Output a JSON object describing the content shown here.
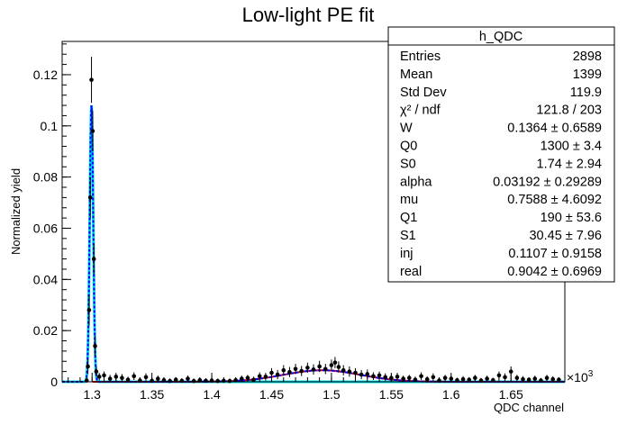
{
  "chart_data": {
    "type": "scatter",
    "title": "Low-light PE fit",
    "xlabel": "QDC channel",
    "ylabel": "Normalized yield",
    "x_multiplier": "×10",
    "x_multiplier_exp": "3",
    "xlim": [
      1.275,
      1.695
    ],
    "ylim": [
      0,
      0.133
    ],
    "xticks": [
      {
        "v": 1.3,
        "label": "1.3"
      },
      {
        "v": 1.35,
        "label": "1.35"
      },
      {
        "v": 1.4,
        "label": "1.4"
      },
      {
        "v": 1.45,
        "label": "1.45"
      },
      {
        "v": 1.5,
        "label": "1.5"
      },
      {
        "v": 1.55,
        "label": "1.55"
      },
      {
        "v": 1.6,
        "label": "1.6"
      },
      {
        "v": 1.65,
        "label": "1.65"
      }
    ],
    "yticks": [
      {
        "v": 0,
        "label": "0"
      },
      {
        "v": 0.02,
        "label": "0.02"
      },
      {
        "v": 0.04,
        "label": "0.04"
      },
      {
        "v": 0.06,
        "label": "0.06"
      },
      {
        "v": 0.08,
        "label": "0.08"
      },
      {
        "v": 0.1,
        "label": "0.1"
      },
      {
        "v": 0.12,
        "label": "0.12"
      }
    ],
    "data_points": [
      {
        "x": 1.2955,
        "y": 0.0005,
        "err": 0.0012
      },
      {
        "x": 1.2965,
        "y": 0.006,
        "err": 0.003
      },
      {
        "x": 1.2975,
        "y": 0.028,
        "err": 0.006
      },
      {
        "x": 1.2985,
        "y": 0.072,
        "err": 0.008
      },
      {
        "x": 1.2995,
        "y": 0.118,
        "err": 0.009
      },
      {
        "x": 1.3005,
        "y": 0.098,
        "err": 0.008
      },
      {
        "x": 1.3015,
        "y": 0.048,
        "err": 0.006
      },
      {
        "x": 1.3025,
        "y": 0.014,
        "err": 0.004
      },
      {
        "x": 1.3035,
        "y": 0.004,
        "err": 0.002
      },
      {
        "x": 1.306,
        "y": 0.002,
        "err": 0.0015
      },
      {
        "x": 1.31,
        "y": 0.0025,
        "err": 0.0015
      },
      {
        "x": 1.315,
        "y": 0.0012,
        "err": 0.0015
      },
      {
        "x": 1.32,
        "y": 0.002,
        "err": 0.0015
      },
      {
        "x": 1.325,
        "y": 0.0015,
        "err": 0.0015
      },
      {
        "x": 1.33,
        "y": 0.0008,
        "err": 0.0012
      },
      {
        "x": 1.335,
        "y": 0.0022,
        "err": 0.0015
      },
      {
        "x": 1.34,
        "y": 0.0005,
        "err": 0.0012
      },
      {
        "x": 1.345,
        "y": 0.0018,
        "err": 0.0015
      },
      {
        "x": 1.35,
        "y": 0.0004,
        "err": 0.0012
      },
      {
        "x": 1.355,
        "y": 0.0012,
        "err": 0.0012
      },
      {
        "x": 1.36,
        "y": 0.0006,
        "err": 0.0012
      },
      {
        "x": 1.365,
        "y": 0.0003,
        "err": 0.001
      },
      {
        "x": 1.37,
        "y": 0.0008,
        "err": 0.001
      },
      {
        "x": 1.375,
        "y": 0.0004,
        "err": 0.001
      },
      {
        "x": 1.38,
        "y": 0.0012,
        "err": 0.0012
      },
      {
        "x": 1.385,
        "y": 0.0003,
        "err": 0.001
      },
      {
        "x": 1.39,
        "y": 0.0006,
        "err": 0.001
      },
      {
        "x": 1.395,
        "y": 0.0004,
        "err": 0.001
      },
      {
        "x": 1.4,
        "y": 0.0005,
        "err": 0.001
      },
      {
        "x": 1.405,
        "y": 0.0003,
        "err": 0.001
      },
      {
        "x": 1.41,
        "y": 0.0004,
        "err": 0.001
      },
      {
        "x": 1.415,
        "y": 0.0003,
        "err": 0.001
      },
      {
        "x": 1.42,
        "y": 0.0006,
        "err": 0.001
      },
      {
        "x": 1.425,
        "y": 0.0012,
        "err": 0.0012
      },
      {
        "x": 1.43,
        "y": 0.0015,
        "err": 0.0012
      },
      {
        "x": 1.435,
        "y": 0.0008,
        "err": 0.0012
      },
      {
        "x": 1.44,
        "y": 0.0022,
        "err": 0.0015
      },
      {
        "x": 1.445,
        "y": 0.002,
        "err": 0.0015
      },
      {
        "x": 1.45,
        "y": 0.0035,
        "err": 0.0018
      },
      {
        "x": 1.455,
        "y": 0.0028,
        "err": 0.0018
      },
      {
        "x": 1.46,
        "y": 0.0045,
        "err": 0.002
      },
      {
        "x": 1.465,
        "y": 0.0038,
        "err": 0.002
      },
      {
        "x": 1.47,
        "y": 0.005,
        "err": 0.002
      },
      {
        "x": 1.475,
        "y": 0.0042,
        "err": 0.002
      },
      {
        "x": 1.48,
        "y": 0.0055,
        "err": 0.002
      },
      {
        "x": 1.485,
        "y": 0.0048,
        "err": 0.002
      },
      {
        "x": 1.49,
        "y": 0.006,
        "err": 0.0022
      },
      {
        "x": 1.495,
        "y": 0.005,
        "err": 0.002
      },
      {
        "x": 1.5,
        "y": 0.0065,
        "err": 0.0022
      },
      {
        "x": 1.503,
        "y": 0.0075,
        "err": 0.0022
      },
      {
        "x": 1.506,
        "y": 0.0058,
        "err": 0.0022
      },
      {
        "x": 1.51,
        "y": 0.0045,
        "err": 0.002
      },
      {
        "x": 1.515,
        "y": 0.004,
        "err": 0.002
      },
      {
        "x": 1.52,
        "y": 0.0035,
        "err": 0.0018
      },
      {
        "x": 1.525,
        "y": 0.0028,
        "err": 0.0018
      },
      {
        "x": 1.53,
        "y": 0.003,
        "err": 0.0018
      },
      {
        "x": 1.535,
        "y": 0.0022,
        "err": 0.0015
      },
      {
        "x": 1.54,
        "y": 0.0025,
        "err": 0.0015
      },
      {
        "x": 1.545,
        "y": 0.0018,
        "err": 0.0015
      },
      {
        "x": 1.55,
        "y": 0.0015,
        "err": 0.0015
      },
      {
        "x": 1.555,
        "y": 0.002,
        "err": 0.0015
      },
      {
        "x": 1.56,
        "y": 0.0012,
        "err": 0.0012
      },
      {
        "x": 1.565,
        "y": 0.0015,
        "err": 0.0012
      },
      {
        "x": 1.57,
        "y": 0.0008,
        "err": 0.0012
      },
      {
        "x": 1.575,
        "y": 0.0022,
        "err": 0.0015
      },
      {
        "x": 1.58,
        "y": 0.001,
        "err": 0.0012
      },
      {
        "x": 1.585,
        "y": 0.0018,
        "err": 0.0015
      },
      {
        "x": 1.59,
        "y": 0.0005,
        "err": 0.0012
      },
      {
        "x": 1.595,
        "y": 0.0015,
        "err": 0.0012
      },
      {
        "x": 1.6,
        "y": 0.0012,
        "err": 0.0012
      },
      {
        "x": 1.605,
        "y": 0.0006,
        "err": 0.001
      },
      {
        "x": 1.61,
        "y": 0.001,
        "err": 0.0012
      },
      {
        "x": 1.615,
        "y": 0.0008,
        "err": 0.001
      },
      {
        "x": 1.62,
        "y": 0.0015,
        "err": 0.0012
      },
      {
        "x": 1.625,
        "y": 0.0005,
        "err": 0.001
      },
      {
        "x": 1.63,
        "y": 0.0012,
        "err": 0.0012
      },
      {
        "x": 1.635,
        "y": 0.0006,
        "err": 0.001
      },
      {
        "x": 1.64,
        "y": 0.0025,
        "err": 0.0015
      },
      {
        "x": 1.645,
        "y": 0.0018,
        "err": 0.0015
      },
      {
        "x": 1.65,
        "y": 0.004,
        "err": 0.002
      },
      {
        "x": 1.655,
        "y": 0.0015,
        "err": 0.0012
      },
      {
        "x": 1.66,
        "y": 0.001,
        "err": 0.0012
      },
      {
        "x": 1.665,
        "y": 0.0008,
        "err": 0.001
      },
      {
        "x": 1.67,
        "y": 0.0012,
        "err": 0.0012
      },
      {
        "x": 1.675,
        "y": 0.0005,
        "err": 0.001
      },
      {
        "x": 1.68,
        "y": 0.0015,
        "err": 0.0012
      },
      {
        "x": 1.685,
        "y": 0.001,
        "err": 0.0012
      },
      {
        "x": 1.69,
        "y": 0.0008,
        "err": 0.001
      }
    ],
    "fit_model": {
      "pedestal_mean": 1.2995,
      "pedestal_sigma": 0.00145,
      "pedestal_amp": 0.108,
      "pe_mean": 1.492,
      "pe_sigma": 0.032,
      "pe_amp": 0.0045,
      "ped_start": 1.297,
      "pe_start": 1.3005
    },
    "colors": {
      "data": "#000000",
      "total_fit": "#0000ff",
      "pedestal_component": "#00e5ee",
      "pe_component": "#cc0000"
    },
    "stats_box": {
      "name": "h_QDC",
      "rows": [
        {
          "label": "Entries",
          "value": "2898"
        },
        {
          "label": "Mean",
          "value": "1399"
        },
        {
          "label": "Std Dev",
          "value": "119.9"
        },
        {
          "label": "χ² / ndf",
          "value": "121.8 / 203"
        },
        {
          "label": "W",
          "value": "0.1364  ± 0.6589"
        },
        {
          "label": "Q0",
          "value": "1300  ± 3.4"
        },
        {
          "label": "S0",
          "value": "1.74  ± 2.94"
        },
        {
          "label": "alpha",
          "value": "0.03192  ± 0.29289"
        },
        {
          "label": "mu",
          "value": "0.7588  ± 4.6092"
        },
        {
          "label": "Q1",
          "value": "190  ± 53.6"
        },
        {
          "label": "S1",
          "value": "30.45  ± 7.96"
        },
        {
          "label": "inj",
          "value": "0.1107  ± 0.9158"
        },
        {
          "label": "real",
          "value": "0.9042  ± 0.6969"
        }
      ]
    }
  }
}
